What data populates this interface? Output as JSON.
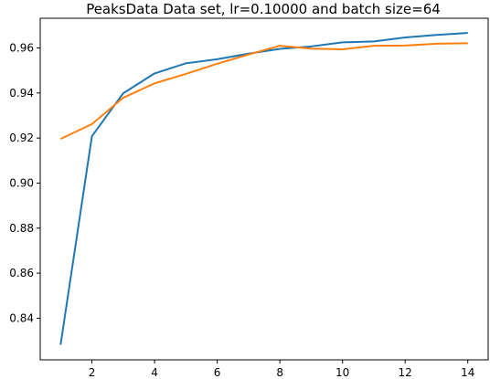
{
  "chart_data": {
    "type": "line",
    "title": "PeaksData Data set, lr=0.10000 and batch size=64",
    "xlabel": "",
    "ylabel": "",
    "xlim": [
      0.35,
      14.65
    ],
    "ylim": [
      0.8215,
      0.9732
    ],
    "xticks": [
      2,
      4,
      6,
      8,
      10,
      12,
      14
    ],
    "xtick_labels": [
      "2",
      "4",
      "6",
      "8",
      "10",
      "12",
      "14"
    ],
    "yticks": [
      0.84,
      0.86,
      0.88,
      0.9,
      0.92,
      0.94,
      0.96
    ],
    "ytick_labels": [
      "0.84",
      "0.86",
      "0.88",
      "0.90",
      "0.92",
      "0.94",
      "0.96"
    ],
    "grid": false,
    "legend": "none",
    "x": [
      1,
      2,
      3,
      4,
      5,
      6,
      7,
      8,
      9,
      10,
      11,
      12,
      13,
      14
    ],
    "series": [
      {
        "color": "#1f77b4",
        "values": [
          0.8282,
          0.9208,
          0.9399,
          0.9487,
          0.9532,
          0.955,
          0.9575,
          0.9596,
          0.9607,
          0.9625,
          0.9629,
          0.9647,
          0.9658,
          0.9667
        ]
      },
      {
        "color": "#ff7f0e",
        "values": [
          0.9196,
          0.9262,
          0.9379,
          0.9443,
          0.9485,
          0.953,
          0.9571,
          0.961,
          0.9597,
          0.9594,
          0.961,
          0.9611,
          0.9619,
          0.9621
        ]
      }
    ]
  }
}
